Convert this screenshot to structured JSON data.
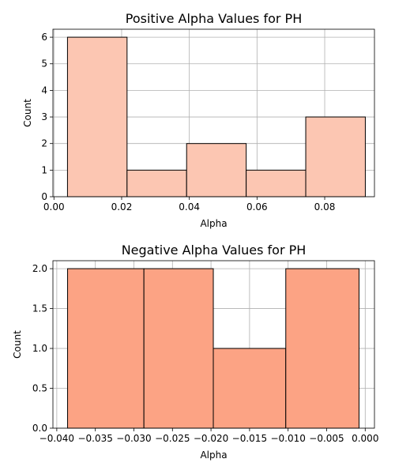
{
  "chart_data": [
    {
      "type": "bar",
      "title": "Positive Alpha Values for PH",
      "xlabel": "Alpha",
      "ylabel": "Count",
      "bar_color": "#fcc6b2",
      "edge_color": "#000000",
      "grid": true,
      "xlim": [
        -0.0003,
        0.0947
      ],
      "ylim": [
        0,
        6.3
      ],
      "xticks": [
        0.0,
        0.02,
        0.04,
        0.06,
        0.08
      ],
      "xtick_labels": [
        "0.00",
        "0.02",
        "0.04",
        "0.06",
        "0.08"
      ],
      "yticks": [
        0,
        1,
        2,
        3,
        4,
        5,
        6
      ],
      "ytick_labels": [
        "0",
        "1",
        "2",
        "3",
        "4",
        "5",
        "6"
      ],
      "bins": [
        {
          "start": 0.004,
          "end": 0.0216,
          "value": 6
        },
        {
          "start": 0.0216,
          "end": 0.0392,
          "value": 1
        },
        {
          "start": 0.0392,
          "end": 0.0568,
          "value": 2
        },
        {
          "start": 0.0568,
          "end": 0.0744,
          "value": 1
        },
        {
          "start": 0.0744,
          "end": 0.092,
          "value": 3
        }
      ]
    },
    {
      "type": "bar",
      "title": "Negative Alpha Values for PH",
      "xlabel": "Alpha",
      "ylabel": "Count",
      "bar_color": "#fca384",
      "edge_color": "#000000",
      "grid": true,
      "xlim": [
        -0.0405,
        0.0012
      ],
      "ylim": [
        0,
        2.1
      ],
      "xticks": [
        -0.04,
        -0.035,
        -0.03,
        -0.025,
        -0.02,
        -0.015,
        -0.01,
        -0.005,
        0.0
      ],
      "xtick_labels": [
        "−0.040",
        "−0.035",
        "−0.030",
        "−0.025",
        "−0.020",
        "−0.015",
        "−0.010",
        "−0.005",
        "0.000"
      ],
      "yticks": [
        0.0,
        0.5,
        1.0,
        1.5,
        2.0
      ],
      "ytick_labels": [
        "0.0",
        "0.5",
        "1.0",
        "1.5",
        "2.0"
      ],
      "bins": [
        {
          "start": -0.0386,
          "end": -0.0287,
          "value": 2
        },
        {
          "start": -0.0287,
          "end": -0.0197,
          "value": 2
        },
        {
          "start": -0.0197,
          "end": -0.0103,
          "value": 1
        },
        {
          "start": -0.0103,
          "end": -0.0008,
          "value": 2
        }
      ]
    }
  ]
}
